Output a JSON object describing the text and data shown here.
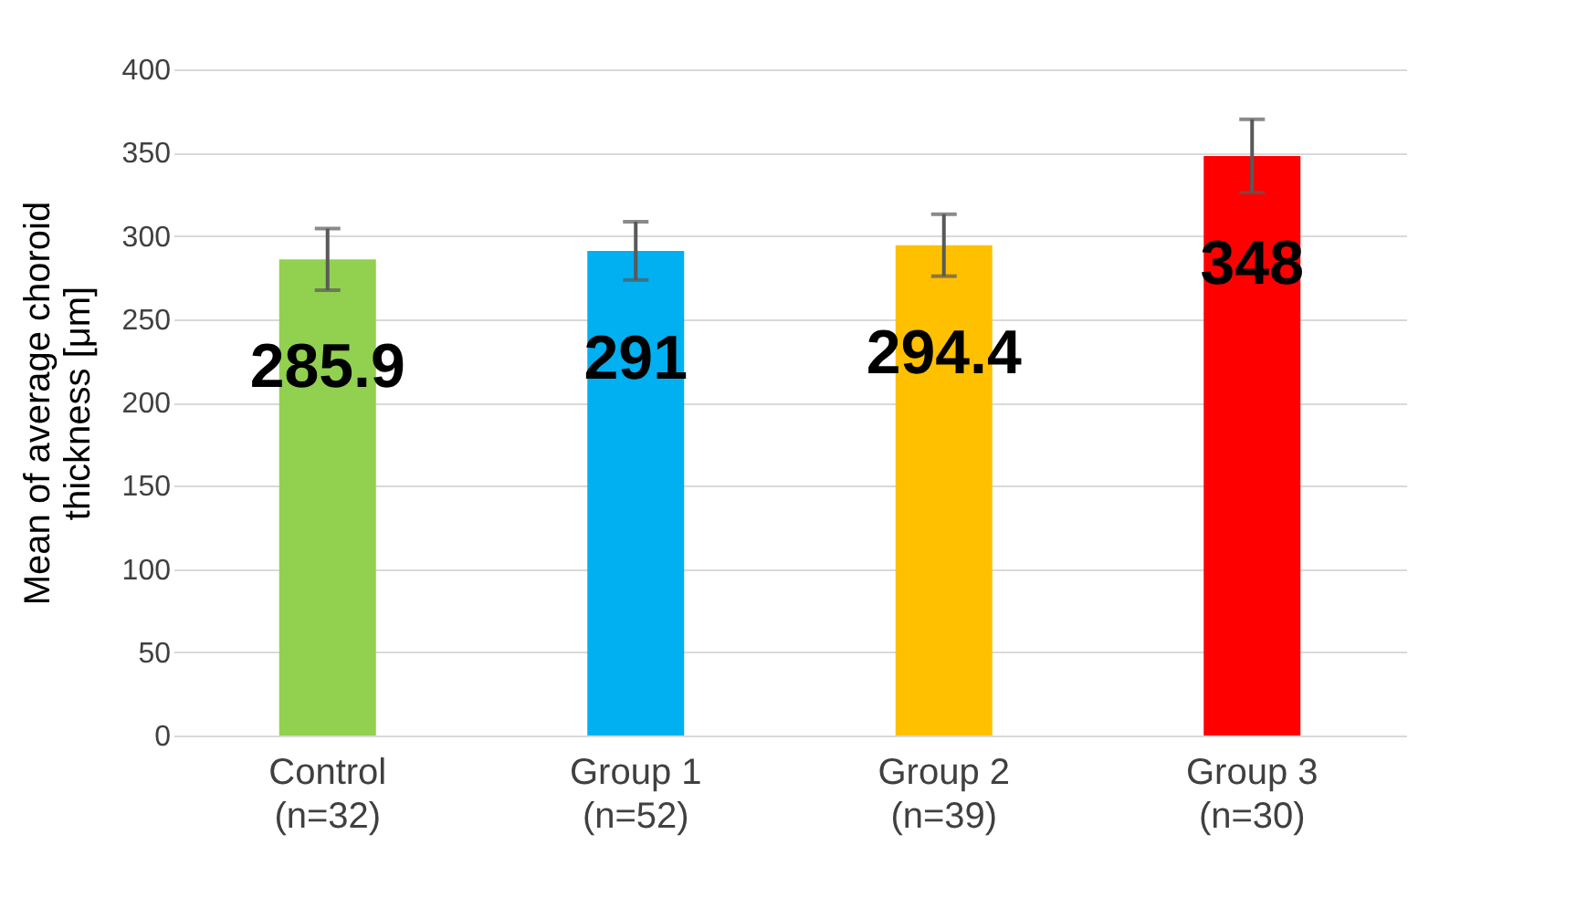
{
  "chart_data": {
    "type": "bar",
    "categories": [
      "Control\n(n=32)",
      "Group 1\n(n=52)",
      "Group 2\n(n=39)",
      "Group 3\n(n=30)"
    ],
    "values": [
      285.9,
      291,
      294.4,
      348
    ],
    "colors": [
      "#92d050",
      "#00b0f0",
      "#ffc000",
      "#ff0000"
    ],
    "errors": [
      18.5,
      17.5,
      18.6,
      22
    ],
    "ylabel": "Mean of average choroid\nthickness [μm]",
    "ylim": [
      0,
      400
    ],
    "yticks": [
      0,
      50,
      100,
      150,
      200,
      250,
      300,
      350,
      400
    ],
    "grid": "y",
    "data_labels": true
  }
}
